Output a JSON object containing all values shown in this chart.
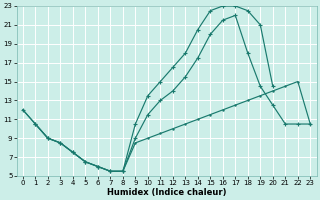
{
  "xlabel": "Humidex (Indice chaleur)",
  "bg_color": "#cceee8",
  "grid_color": "#b0ddd8",
  "line_color": "#1a7a6e",
  "xlim": [
    -0.5,
    23.5
  ],
  "ylim": [
    5,
    23
  ],
  "xticks": [
    0,
    1,
    2,
    3,
    4,
    5,
    6,
    7,
    8,
    9,
    10,
    11,
    12,
    13,
    14,
    15,
    16,
    17,
    18,
    19,
    20,
    21,
    22,
    23
  ],
  "yticks": [
    5,
    7,
    9,
    11,
    13,
    15,
    17,
    19,
    21,
    23
  ],
  "curve1_x": [
    0,
    1,
    2,
    3,
    4,
    5,
    6,
    7,
    8,
    9,
    10,
    11,
    12,
    13,
    14,
    15,
    16,
    17,
    18,
    19,
    20
  ],
  "curve1_y": [
    12.0,
    10.5,
    9.0,
    8.5,
    7.5,
    6.5,
    6.0,
    5.5,
    5.5,
    10.5,
    13.5,
    15.0,
    16.5,
    18.0,
    20.5,
    22.5,
    23.0,
    23.0,
    22.5,
    21.0,
    14.5
  ],
  "curve2_x": [
    0,
    1,
    2,
    3,
    4,
    5,
    6,
    7,
    8,
    9,
    10,
    11,
    12,
    13,
    14,
    15,
    16,
    17,
    18,
    19,
    20,
    21,
    22,
    23
  ],
  "curve2_y": [
    12.0,
    10.5,
    9.0,
    8.5,
    7.5,
    6.5,
    6.0,
    5.5,
    5.5,
    8.5,
    9.0,
    9.5,
    10.0,
    10.5,
    11.0,
    11.5,
    12.0,
    12.5,
    13.0,
    13.5,
    14.0,
    14.5,
    15.0,
    10.5
  ],
  "curve3_x": [
    1,
    2,
    3,
    4,
    5,
    6,
    7,
    8,
    9,
    10,
    11,
    12,
    13,
    14,
    15,
    16,
    17,
    18,
    19,
    20,
    21,
    22,
    23
  ],
  "curve3_y": [
    10.5,
    9.0,
    8.5,
    7.5,
    6.5,
    6.0,
    5.5,
    5.5,
    9.0,
    11.5,
    13.0,
    14.0,
    15.5,
    17.5,
    20.0,
    21.5,
    22.0,
    18.0,
    14.5,
    12.5,
    10.5,
    10.5,
    10.5
  ]
}
